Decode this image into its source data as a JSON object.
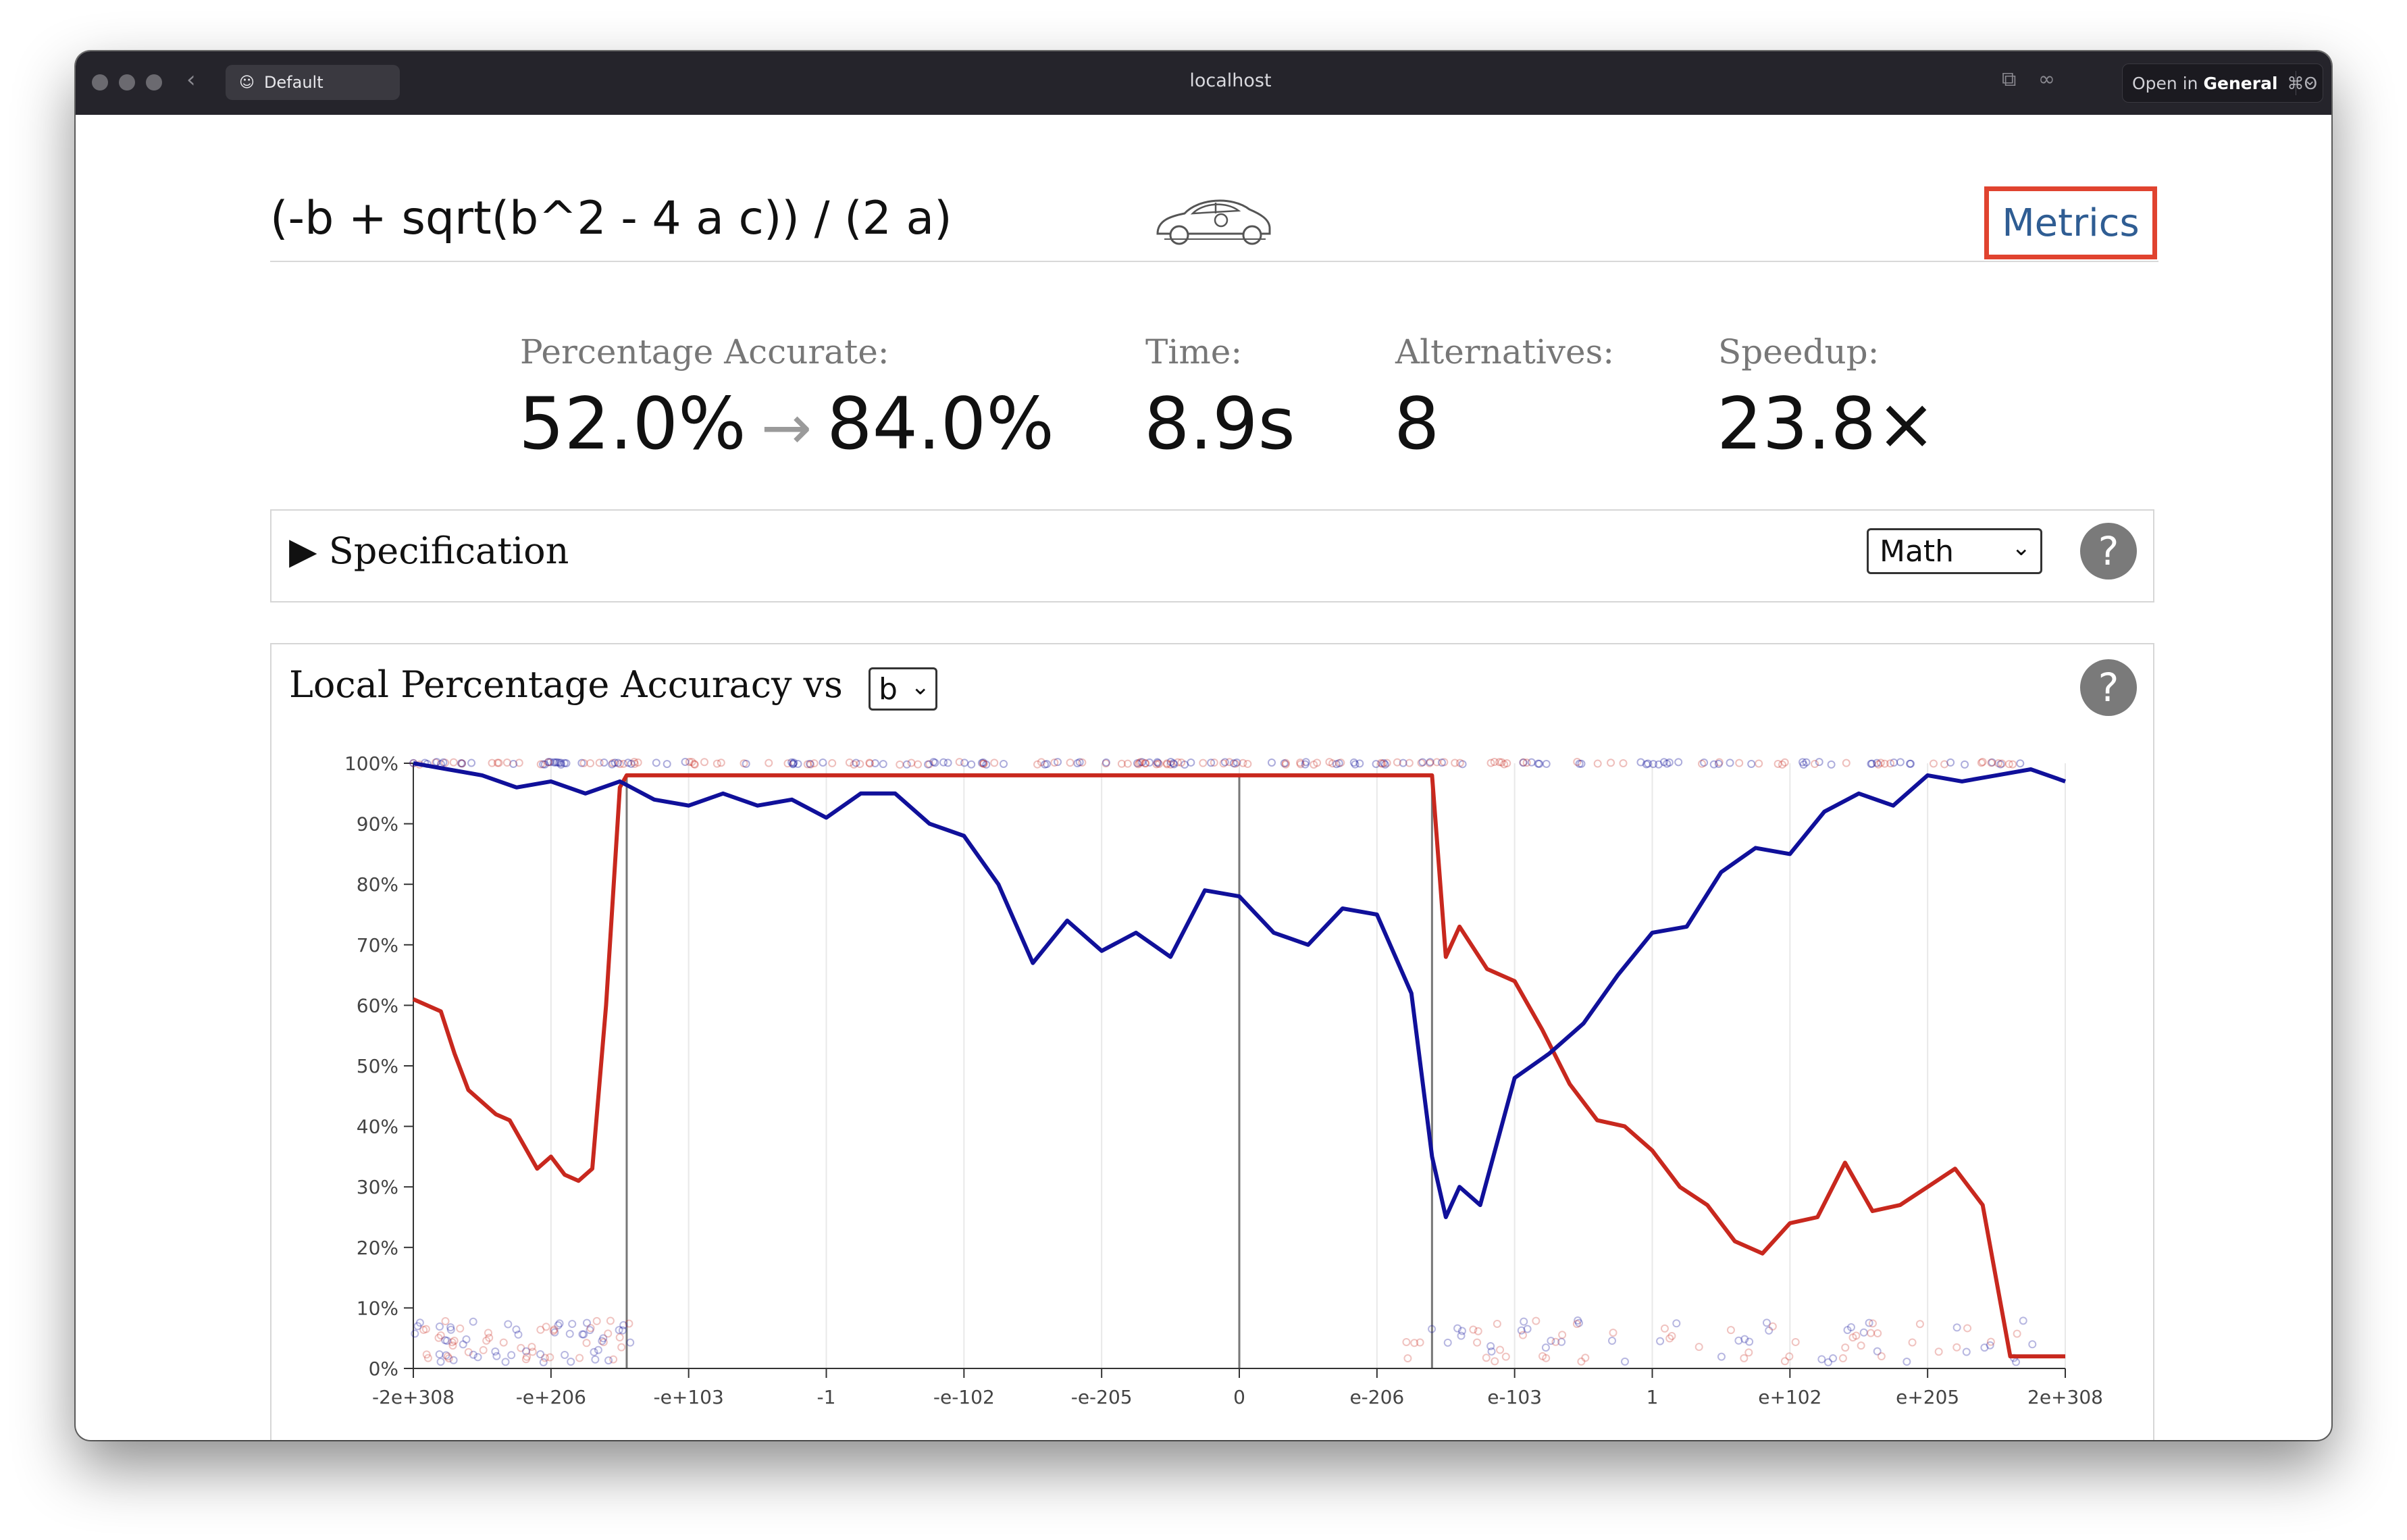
{
  "browser": {
    "profile_label": "Default",
    "url": "localhost",
    "open_in_prefix": "Open in",
    "open_in_target": "General",
    "open_in_shortcut": "⌘O"
  },
  "header": {
    "expression": "(-b + sqrt(b^2 - 4 a c)) / (2 a)",
    "metrics_link": "Metrics"
  },
  "stats": {
    "accuracy_label": "Percentage Accurate:",
    "accuracy_from": "52.0%",
    "accuracy_to": "84.0%",
    "time_label": "Time:",
    "time_value": "8.9s",
    "alternatives_label": "Alternatives:",
    "alternatives_value": "8",
    "speedup_label": "Speedup:",
    "speedup_value": "23.8×"
  },
  "specification": {
    "title": "Specification",
    "format_select": "Math",
    "help": "?"
  },
  "accuracy_plot": {
    "title": "Local Percentage Accuracy vs",
    "variable_select": "b",
    "help": "?"
  },
  "colors": {
    "original": "#c8281e",
    "alternative": "#10109a",
    "accent_link": "#2f5d93",
    "highlight_box": "#e0432f"
  },
  "chart_data": {
    "type": "line",
    "title": "",
    "xlabel": "",
    "ylabel": "",
    "x_tick_labels": [
      "-2e+308",
      "-e+206",
      "-e+103",
      "-1",
      "-e-102",
      "-e-205",
      "0",
      "e-206",
      "e-103",
      "1",
      "e+102",
      "e+205",
      "2e+308"
    ],
    "y_tick_labels": [
      "0%",
      "10%",
      "20%",
      "30%",
      "40%",
      "50%",
      "60%",
      "70%",
      "80%",
      "90%",
      "100%"
    ],
    "ylim": [
      0,
      100
    ],
    "x_positions": [
      0,
      1,
      2,
      3,
      4,
      5,
      6,
      7,
      8,
      9,
      10,
      11,
      12
    ],
    "regime_boundaries": [
      1.55,
      6.0,
      7.4
    ],
    "grid": "vertical",
    "series": [
      {
        "color": "#c8281e",
        "x": [
          0,
          0.1,
          0.2,
          0.3,
          0.4,
          0.5,
          0.6,
          0.7,
          0.8,
          0.9,
          1.0,
          1.1,
          1.2,
          1.3,
          1.4,
          1.5,
          1.55,
          1.6,
          1.8,
          2.0,
          2.5,
          3.0,
          3.5,
          4.0,
          4.5,
          5.0,
          5.5,
          6.0,
          6.5,
          7.0,
          7.3,
          7.4,
          7.5,
          7.6,
          7.8,
          8.0,
          8.2,
          8.4,
          8.6,
          8.8,
          9.0,
          9.2,
          9.4,
          9.6,
          9.8,
          10.0,
          10.2,
          10.4,
          10.6,
          10.8,
          11.0,
          11.2,
          11.4,
          11.6,
          11.8,
          12.0
        ],
        "y": [
          61,
          60,
          59,
          52,
          46,
          44,
          42,
          41,
          37,
          33,
          35,
          32,
          31,
          33,
          60,
          96,
          98,
          98,
          98,
          98,
          98,
          98,
          98,
          98,
          98,
          98,
          98,
          98,
          98,
          98,
          98,
          98,
          68,
          73,
          66,
          64,
          56,
          47,
          41,
          40,
          36,
          30,
          27,
          21,
          19,
          24,
          25,
          34,
          26,
          27,
          30,
          33,
          27,
          2,
          2,
          2
        ]
      },
      {
        "color": "#10109a",
        "x": [
          0,
          0.25,
          0.5,
          0.75,
          1.0,
          1.25,
          1.5,
          1.75,
          2.0,
          2.25,
          2.5,
          2.75,
          3.0,
          3.25,
          3.5,
          3.75,
          4.0,
          4.25,
          4.5,
          4.75,
          5.0,
          5.25,
          5.5,
          5.75,
          6.0,
          6.25,
          6.5,
          6.75,
          7.0,
          7.25,
          7.4,
          7.5,
          7.6,
          7.75,
          8.0,
          8.25,
          8.5,
          8.75,
          9.0,
          9.25,
          9.5,
          9.75,
          10.0,
          10.25,
          10.5,
          10.75,
          11.0,
          11.25,
          11.5,
          11.75,
          12.0
        ],
        "y": [
          100,
          99,
          98,
          96,
          97,
          95,
          97,
          94,
          93,
          95,
          93,
          94,
          91,
          95,
          95,
          90,
          88,
          80,
          67,
          74,
          69,
          72,
          68,
          79,
          78,
          72,
          70,
          76,
          75,
          62,
          35,
          25,
          30,
          27,
          48,
          52,
          57,
          65,
          72,
          73,
          82,
          86,
          85,
          92,
          95,
          93,
          98,
          97,
          98,
          99,
          97
        ]
      }
    ]
  }
}
